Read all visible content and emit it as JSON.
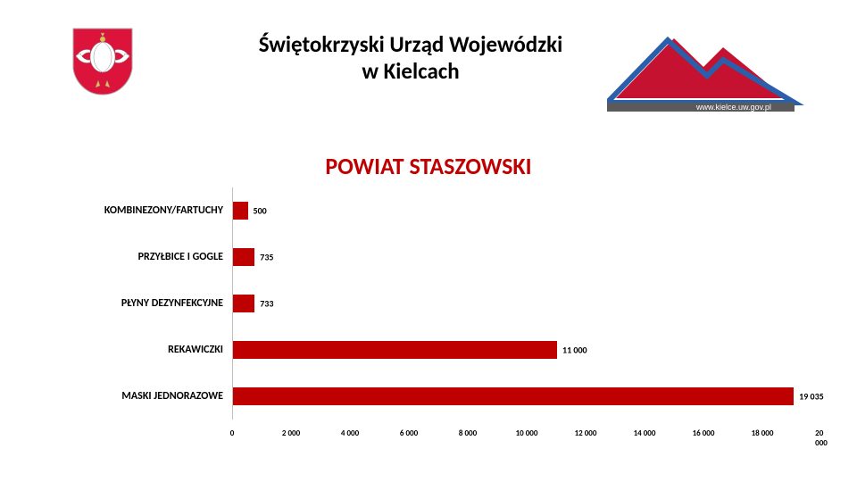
{
  "header": {
    "title_line1": "Świętokrzyski Urząd Wojewódzki",
    "title_line2": "w Kielcach",
    "website": "www.kielce.uw.gov.pl"
  },
  "section_title": "POWIAT STASZOWSKI",
  "chart": {
    "type": "bar",
    "orientation": "horizontal",
    "bar_color": "#be0000",
    "axis_color": "#bfbfbf",
    "label_fontsize": 12,
    "value_fontsize": 10,
    "tick_fontsize": 9,
    "xlim": [
      0,
      20000
    ],
    "xtick_step": 2000,
    "categories": [
      "KOMBINEZONY/FARTUCHY",
      "PRZYŁBICE I GOGLE",
      "PŁYNY DEZYNFEKCYJNE",
      "REKAWICZKI",
      "MASKI JEDNORAZOWE"
    ],
    "values": [
      500,
      735,
      733,
      11000,
      19035
    ],
    "value_labels": [
      "500",
      "735",
      "733",
      "11 000",
      "19 035"
    ],
    "xticks": [
      "0",
      "2 000",
      "4 000",
      "6 000",
      "8 000",
      "10 000",
      "12 000",
      "14 000",
      "16 000",
      "18 000",
      "20 000"
    ]
  }
}
